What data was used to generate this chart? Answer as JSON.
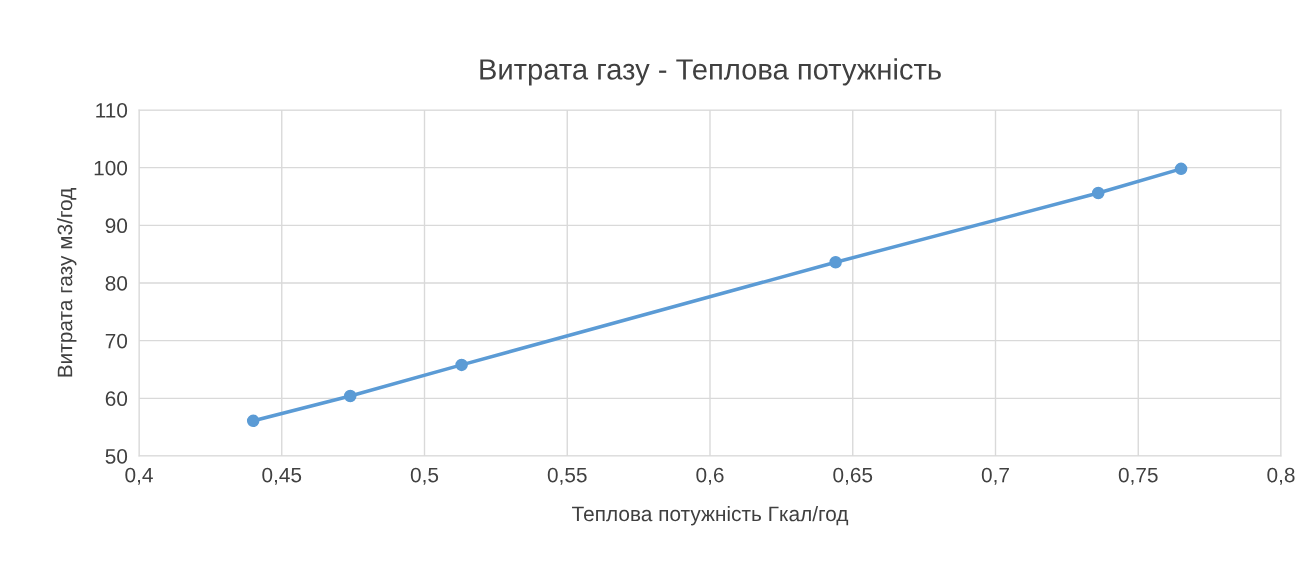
{
  "chart_data": {
    "type": "line",
    "title": "Витрата газу - Теплова потужність",
    "xlabel": "Теплова потужність Гкал/год",
    "ylabel": "Витрата газу м3/год",
    "x": [
      0.44,
      0.474,
      0.513,
      0.644,
      0.736,
      0.765
    ],
    "series": [
      {
        "color": "#5b9bd5",
        "values": [
          56.1,
          60.4,
          65.8,
          83.6,
          95.6,
          99.8
        ]
      }
    ],
    "xlim": [
      0.4,
      0.8
    ],
    "xticks": [
      {
        "value": 0.4,
        "label": "0,4"
      },
      {
        "value": 0.45,
        "label": "0,45"
      },
      {
        "value": 0.5,
        "label": "0,5"
      },
      {
        "value": 0.55,
        "label": "0,55"
      },
      {
        "value": 0.6,
        "label": "0,6"
      },
      {
        "value": 0.65,
        "label": "0,65"
      },
      {
        "value": 0.7,
        "label": "0,7"
      },
      {
        "value": 0.75,
        "label": "0,75"
      },
      {
        "value": 0.8,
        "label": "0,8"
      }
    ],
    "ylim": [
      50,
      110
    ],
    "yticks": [
      50,
      60,
      70,
      80,
      90,
      100,
      110
    ],
    "grid": true,
    "marker": "circle",
    "line_style": "solid"
  }
}
